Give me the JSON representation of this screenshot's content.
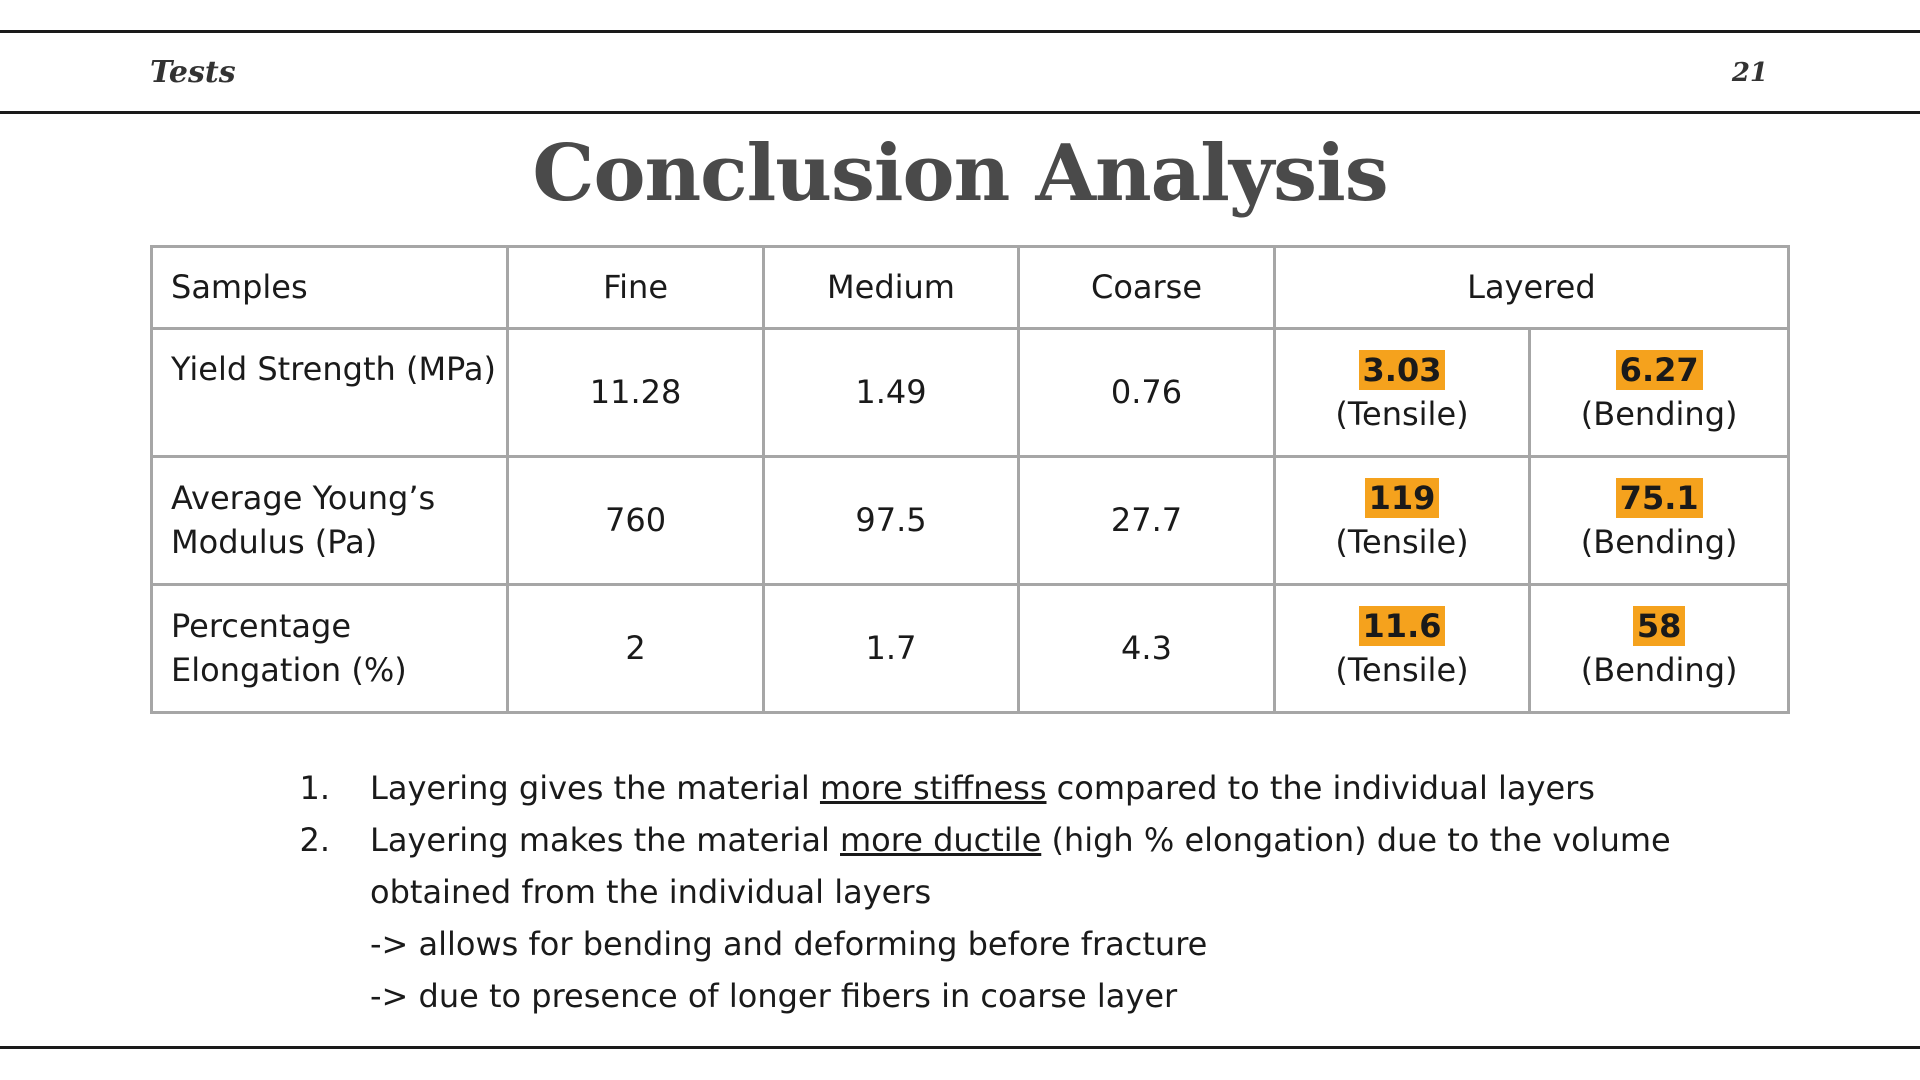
{
  "header": {
    "section": "Tests",
    "page_number": "21"
  },
  "title": "Conclusion Analysis",
  "table": {
    "headers": [
      "Samples",
      "Fine",
      "Medium",
      "Coarse",
      "Layered"
    ],
    "rows": [
      {
        "label": "Yield Strength (MPa)",
        "fine": "11.28",
        "medium": "1.49",
        "coarse": "0.76",
        "layered_tensile_value": "3.03",
        "layered_tensile_label": "(Tensile)",
        "layered_bending_value": "6.27",
        "layered_bending_label": "(Bending)"
      },
      {
        "label_line1": "Average Young’s",
        "label_line2": "Modulus (Pa)",
        "fine": "760",
        "medium": "97.5",
        "coarse": "27.7",
        "layered_tensile_value": "119",
        "layered_tensile_label": "(Tensile)",
        "layered_bending_value": "75.1",
        "layered_bending_label": "(Bending)"
      },
      {
        "label_line1": "Percentage",
        "label_line2": "Elongation (%)",
        "fine": "2",
        "medium": "1.7",
        "coarse": "4.3",
        "layered_tensile_value": "11.6",
        "layered_tensile_label": "(Tensile)",
        "layered_bending_value": "58",
        "layered_bending_label": "(Bending)"
      }
    ],
    "highlight_color": "#f5a21d",
    "border_color": "#a6a6a6"
  },
  "notes": [
    {
      "number": "1.",
      "before": "Layering gives the material ",
      "emphasis": "more stiffness",
      "after": " compared to the individual layers"
    },
    {
      "number": "2.",
      "before": "Layering makes the material ",
      "emphasis": "more ductile",
      "after": " (high % elongation) due to the volume",
      "continuation": "obtained from the individual layers",
      "sub_points": [
        "-> allows for bending and deforming before fracture",
        "-> due to presence of longer fibers in coarse layer"
      ]
    }
  ]
}
